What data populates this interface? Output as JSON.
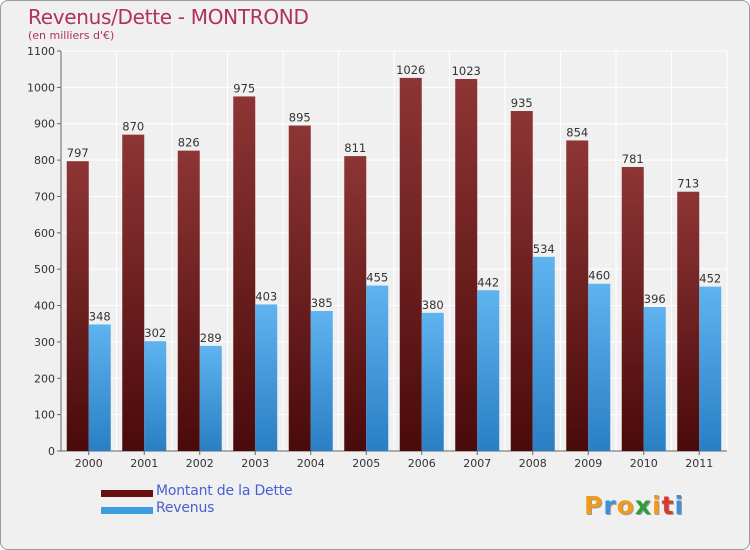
{
  "chart_data": {
    "type": "bar",
    "title": "Revenus/Dette - MONTROND",
    "subtitle": "(en milliers d'€)",
    "categories": [
      "2000",
      "2001",
      "2002",
      "2003",
      "2004",
      "2005",
      "2006",
      "2007",
      "2008",
      "2009",
      "2010",
      "2011"
    ],
    "series": [
      {
        "name": "Montant de la Dette",
        "values": [
          797,
          870,
          826,
          975,
          895,
          811,
          1026,
          1023,
          935,
          854,
          781,
          713
        ],
        "color": "#7a1a1a"
      },
      {
        "name": "Revenus",
        "values": [
          348,
          302,
          289,
          403,
          385,
          455,
          380,
          442,
          534,
          460,
          396,
          452
        ],
        "color": "#3d9be0"
      }
    ],
    "ylim": [
      0,
      1100
    ],
    "yticks": [
      0,
      100,
      200,
      300,
      400,
      500,
      600,
      700,
      800,
      900,
      1000,
      1100
    ],
    "grid": true,
    "legend_position": "bottom-left"
  },
  "legend": {
    "items": [
      {
        "label": "Montant de la Dette",
        "color": "#7a1a1a"
      },
      {
        "label": "Revenus",
        "color": "#3d9be0"
      }
    ]
  },
  "logo": {
    "letters": [
      "P",
      "r",
      "o",
      "x",
      "i",
      "t",
      "i"
    ],
    "colors": [
      "#f29a1a",
      "#3f8fd8",
      "#f29a1a",
      "#2e9e3a",
      "#f29a1a",
      "#d63a2a",
      "#3f8fd8"
    ]
  }
}
